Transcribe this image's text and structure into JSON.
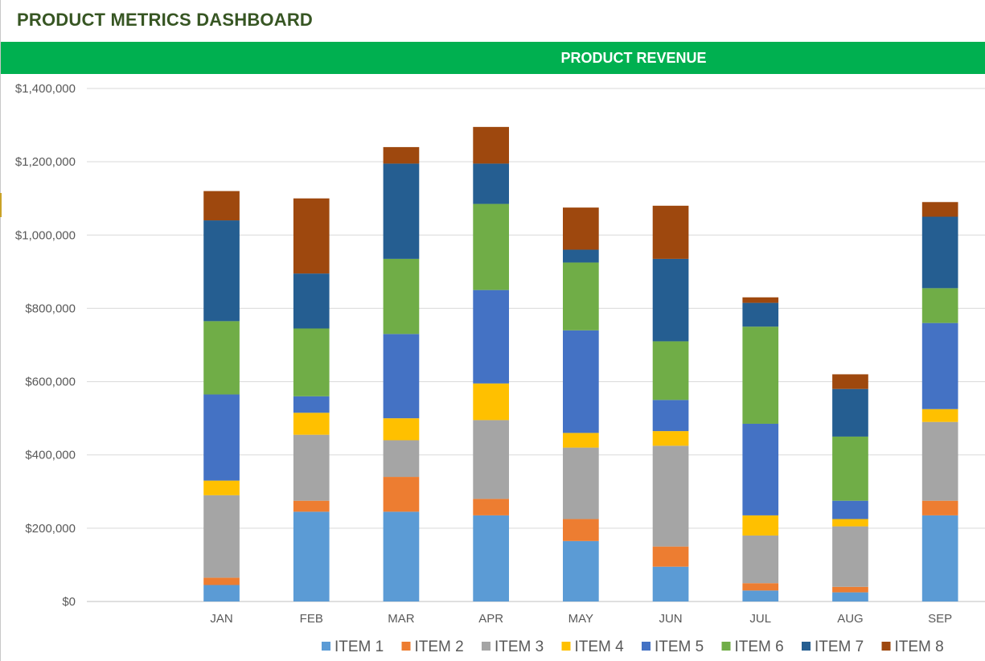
{
  "dashboard": {
    "title": "PRODUCT METRICS DASHBOARD"
  },
  "banner": {
    "title": "PRODUCT REVENUE"
  },
  "chart_data": {
    "type": "bar",
    "stacked": true,
    "title": "PRODUCT REVENUE",
    "xlabel": "",
    "ylabel": "",
    "ylim": [
      0,
      1400000
    ],
    "y_ticks": [
      "$0",
      "$200,000",
      "$400,000",
      "$600,000",
      "$800,000",
      "$1,000,000",
      "$1,200,000",
      "$1,400,000"
    ],
    "grid": true,
    "legend": "bottom",
    "categories": [
      "",
      "JAN",
      "FEB",
      "MAR",
      "APR",
      "MAY",
      "JUN",
      "JUL",
      "AUG",
      "SEP"
    ],
    "series": [
      {
        "name": "ITEM 1",
        "color": "#5b9bd5",
        "values": [
          null,
          45000,
          245000,
          245000,
          235000,
          165000,
          95000,
          30000,
          25000,
          235000
        ]
      },
      {
        "name": "ITEM 2",
        "color": "#ed7d31",
        "values": [
          null,
          20000,
          30000,
          95000,
          45000,
          60000,
          55000,
          20000,
          15000,
          40000
        ]
      },
      {
        "name": "ITEM 3",
        "color": "#a5a5a5",
        "values": [
          null,
          225000,
          180000,
          100000,
          215000,
          195000,
          275000,
          130000,
          165000,
          215000
        ]
      },
      {
        "name": "ITEM 4",
        "color": "#ffc000",
        "values": [
          null,
          40000,
          60000,
          60000,
          100000,
          40000,
          40000,
          55000,
          20000,
          35000
        ]
      },
      {
        "name": "ITEM 5",
        "color": "#4472c4",
        "values": [
          null,
          235000,
          45000,
          230000,
          255000,
          280000,
          85000,
          250000,
          50000,
          235000
        ]
      },
      {
        "name": "ITEM 6",
        "color": "#70ad47",
        "values": [
          null,
          200000,
          185000,
          205000,
          235000,
          185000,
          160000,
          265000,
          175000,
          95000
        ]
      },
      {
        "name": "ITEM 7",
        "color": "#255e91",
        "values": [
          null,
          275000,
          150000,
          260000,
          110000,
          35000,
          225000,
          65000,
          130000,
          195000
        ]
      },
      {
        "name": "ITEM 8",
        "color": "#9e480e",
        "values": [
          null,
          80000,
          205000,
          45000,
          100000,
          115000,
          145000,
          15000,
          40000,
          40000
        ]
      }
    ]
  }
}
